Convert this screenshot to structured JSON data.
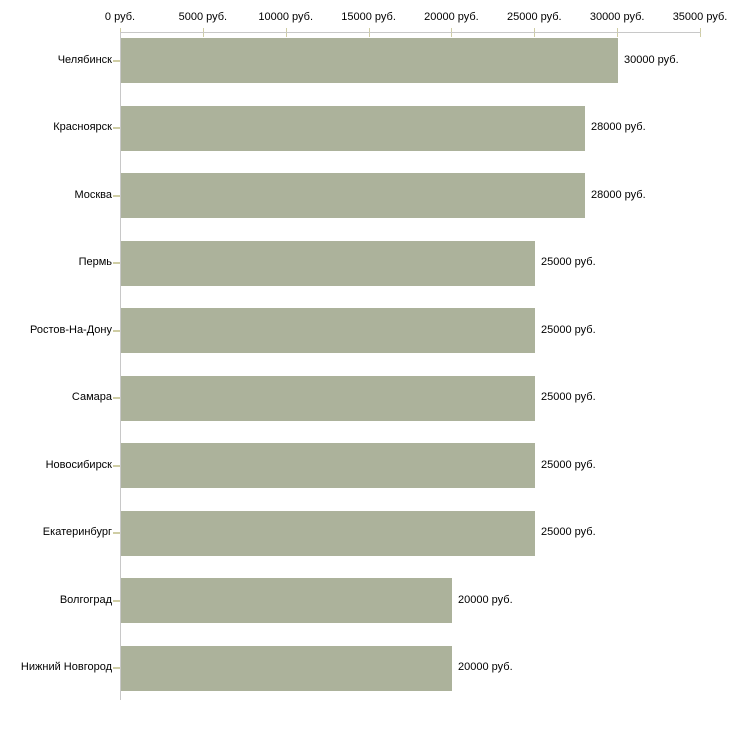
{
  "chart_data": {
    "type": "bar",
    "orientation": "horizontal",
    "categories": [
      "Челябинск",
      "Красноярск",
      "Москва",
      "Пермь",
      "Ростов-На-Дону",
      "Самара",
      "Новосибирск",
      "Екатеринбург",
      "Волгоград",
      "Нижний Новгород"
    ],
    "values": [
      30000,
      28000,
      28000,
      25000,
      25000,
      25000,
      25000,
      25000,
      20000,
      20000
    ],
    "value_labels": [
      "30000 руб.",
      "28000 руб.",
      "28000 руб.",
      "25000 руб.",
      "25000 руб.",
      "25000 руб.",
      "25000 руб.",
      "25000 руб.",
      "20000 руб.",
      "20000 руб."
    ],
    "x_ticks": [
      {
        "value": 0,
        "label": "0 руб."
      },
      {
        "value": 5000,
        "label": "5000 руб."
      },
      {
        "value": 10000,
        "label": "10000 руб."
      },
      {
        "value": 15000,
        "label": "15000 руб."
      },
      {
        "value": 20000,
        "label": "20000 руб."
      },
      {
        "value": 25000,
        "label": "25000 руб."
      },
      {
        "value": 30000,
        "label": "30000 руб."
      },
      {
        "value": 35000,
        "label": "35000 руб."
      }
    ],
    "xlim": [
      0,
      35000
    ],
    "unit": "руб.",
    "grid": false,
    "legend": "none",
    "colors": {
      "bar": "#ACB29B",
      "axis_line": "#C8C8C8",
      "tick": "#CFCDA4",
      "text": "#000000",
      "background": "#FFFFFF"
    }
  }
}
